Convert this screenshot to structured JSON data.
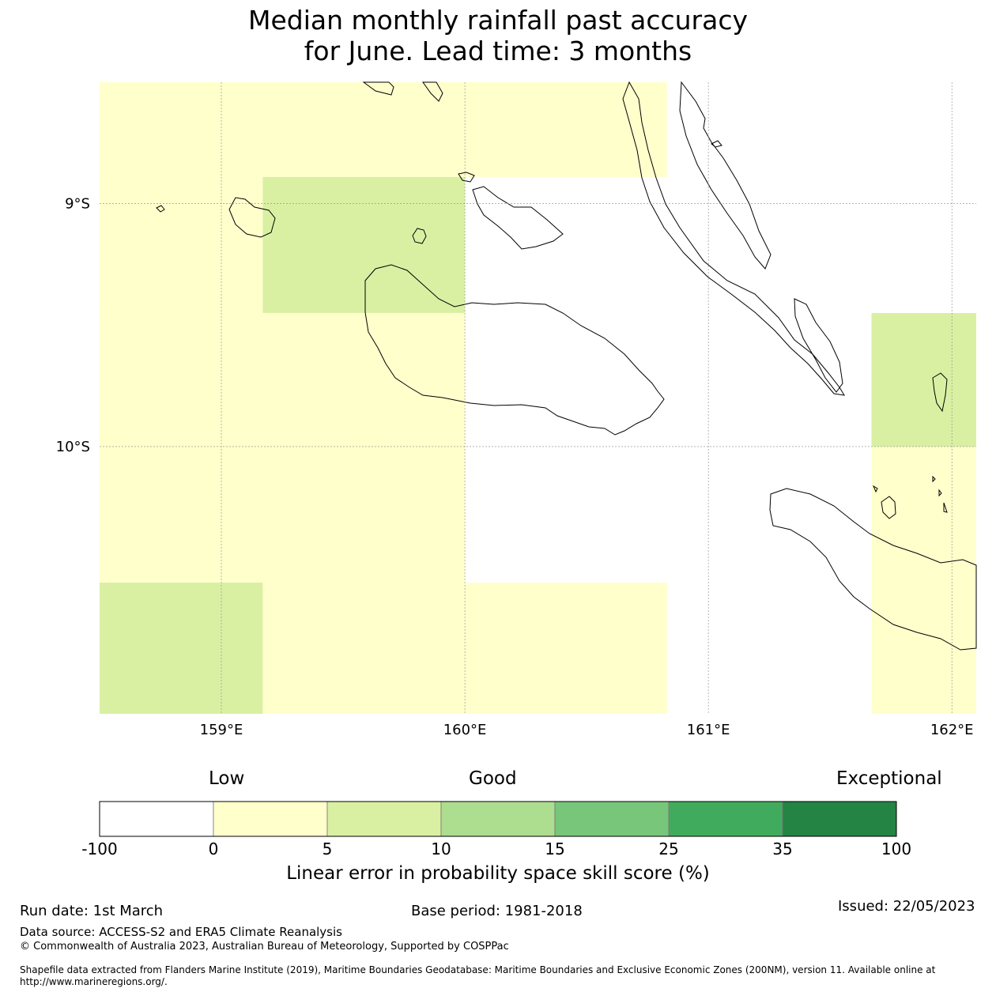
{
  "title": "Median monthly rainfall past accuracy\nfor June. Lead time: 3 months",
  "map": {
    "lon_range": [
      158.5,
      162.1
    ],
    "lat_range": [
      -11.1,
      -8.5
    ],
    "lon_ticks": [
      {
        "value": 159,
        "label": "159°E"
      },
      {
        "value": 160,
        "label": "160°E"
      },
      {
        "value": 161,
        "label": "161°E"
      },
      {
        "value": 162,
        "label": "162°E"
      }
    ],
    "lat_ticks": [
      {
        "value": -9,
        "label": "9°S"
      },
      {
        "value": -10,
        "label": "10°S"
      }
    ],
    "cells": [
      {
        "lon": [
          158.5,
          160.83
        ],
        "lat": [
          -8.89,
          -8.5
        ],
        "value": "0-5"
      },
      {
        "lon": [
          158.5,
          159.17
        ],
        "lat": [
          -9.45,
          -8.89
        ],
        "value": "0-5"
      },
      {
        "lon": [
          159.17,
          160.0
        ],
        "lat": [
          -9.45,
          -8.89
        ],
        "value": "5-10"
      },
      {
        "lon": [
          158.5,
          160.0
        ],
        "lat": [
          -10.56,
          -9.45
        ],
        "value": "0-5"
      },
      {
        "lon": [
          158.5,
          159.17
        ],
        "lat": [
          -11.1,
          -10.56
        ],
        "value": "5-10"
      },
      {
        "lon": [
          159.17,
          160.0
        ],
        "lat": [
          -11.1,
          -10.56
        ],
        "value": "0-5"
      },
      {
        "lon": [
          160.0,
          160.83
        ],
        "lat": [
          -11.1,
          -10.56
        ],
        "value": "0-5"
      },
      {
        "lon": [
          161.67,
          162.1
        ],
        "lat": [
          -10.0,
          -9.45
        ],
        "value": "5-10"
      },
      {
        "lon": [
          161.67,
          162.1
        ],
        "lat": [
          -11.1,
          -10.0
        ],
        "value": "0-5"
      }
    ]
  },
  "colorbar": {
    "category_labels": {
      "low": "Low",
      "good": "Good",
      "exceptional": "Exceptional"
    },
    "bins": [
      {
        "range": "-100-0",
        "color": "#ffffff"
      },
      {
        "range": "0-5",
        "color": "#ffffcc"
      },
      {
        "range": "5-10",
        "color": "#d9f0a3"
      },
      {
        "range": "10-15",
        "color": "#addd8e"
      },
      {
        "range": "15-25",
        "color": "#78c679"
      },
      {
        "range": "25-35",
        "color": "#41ab5d"
      },
      {
        "range": "35-100",
        "color": "#238443"
      }
    ],
    "ticks": [
      "-100",
      "0",
      "5",
      "10",
      "15",
      "25",
      "35",
      "100"
    ],
    "caption": "Linear error in probability space skill score (%)"
  },
  "footer": {
    "run_date": "Run date: 1st March",
    "base_period": "Base period: 1981-2018",
    "issued": "Issued: 22/05/2023",
    "data_source": "Data source: ACCESS-S2 and ERA5 Climate Reanalysis",
    "copyright": "© Commonwealth of Australia 2023, Australian Bureau of Meteorology, Supported by COSPPac",
    "shapefile": "Shapefile data extracted from Flanders Marine Institute (2019), Maritime Boundaries Geodatabase: Maritime Boundaries and Exclusive Economic Zones (200NM), version 11. Available online at http://www.marineregions.org/."
  }
}
